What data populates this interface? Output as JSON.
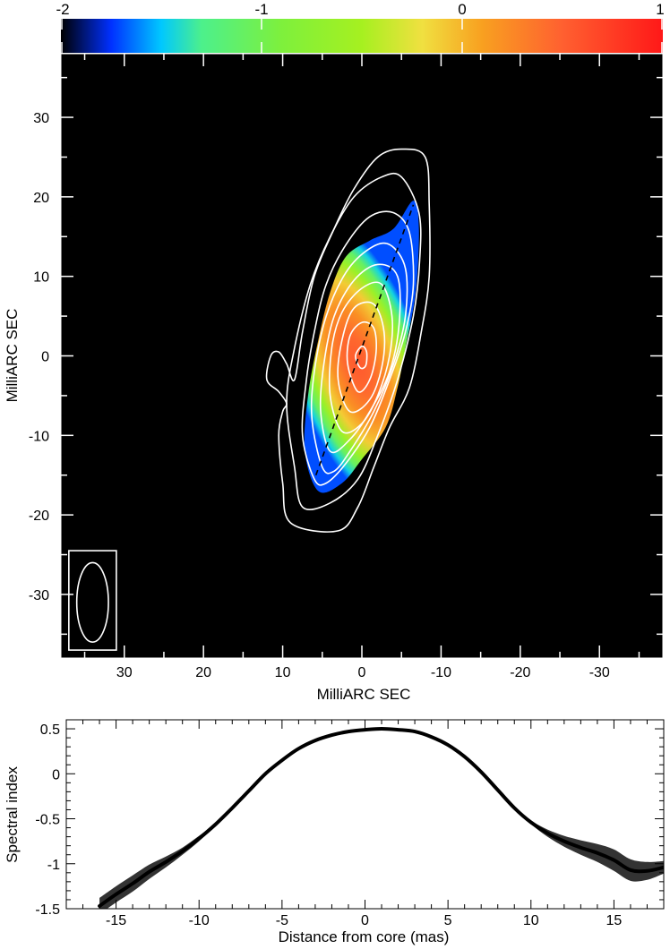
{
  "colorbar": {
    "ticks": [
      "-2",
      "-1",
      "0",
      "1"
    ],
    "tick_values": [
      -2,
      -1,
      0,
      1
    ],
    "range": [
      -2,
      1
    ],
    "stops": [
      {
        "v": -2.0,
        "c": "#000000"
      },
      {
        "v": -1.75,
        "c": "#0030ff"
      },
      {
        "v": -1.5,
        "c": "#00c8ff"
      },
      {
        "v": -1.3,
        "c": "#4cf08c"
      },
      {
        "v": -0.9,
        "c": "#7ef03c"
      },
      {
        "v": -0.5,
        "c": "#a6f020"
      },
      {
        "v": -0.2,
        "c": "#f0e040"
      },
      {
        "v": 0.1,
        "c": "#f8a020"
      },
      {
        "v": 0.5,
        "c": "#ff6030"
      },
      {
        "v": 1.0,
        "c": "#ff1818"
      }
    ]
  },
  "map": {
    "xlabel": "MilliARC SEC",
    "ylabel": "MilliARC SEC",
    "xticks": [
      "30",
      "20",
      "10",
      "0",
      "-10",
      "-20",
      "-30"
    ],
    "xtick_values": [
      30,
      20,
      10,
      0,
      -10,
      -20,
      -30
    ],
    "yticks": [
      "30",
      "20",
      "10",
      "0",
      "-10",
      "-20",
      "-30"
    ],
    "ytick_values": [
      30,
      20,
      10,
      0,
      -10,
      -20,
      -30
    ],
    "xlim": [
      38,
      -38
    ],
    "ylim": [
      -38,
      38
    ],
    "background": "#000000",
    "contour_color": "#ffffff",
    "ridge_line": {
      "from": [
        5.8,
        -15.0
      ],
      "to": [
        -6.5,
        19.0
      ],
      "style": "dashed"
    },
    "contours": [
      {
        "name": "outer",
        "points": [
          [
            3,
            -22
          ],
          [
            9,
            -21
          ],
          [
            10,
            -16
          ],
          [
            10.5,
            -10
          ],
          [
            10,
            -7
          ],
          [
            9.5,
            -6
          ],
          [
            10.5,
            -4.5
          ],
          [
            12,
            -3
          ],
          [
            11.5,
            0
          ],
          [
            10.5,
            0.5
          ],
          [
            9.5,
            -1
          ],
          [
            8.5,
            -3
          ],
          [
            7.5,
            3
          ],
          [
            6,
            10
          ],
          [
            3.5,
            16
          ],
          [
            1,
            21
          ],
          [
            -2,
            25
          ],
          [
            -5,
            26
          ],
          [
            -8,
            25
          ],
          [
            -8.5,
            19
          ],
          [
            -8.5,
            10
          ],
          [
            -7.5,
            3
          ],
          [
            -6,
            -4
          ],
          [
            -3.5,
            -9
          ],
          [
            -1.5,
            -14
          ],
          [
            0.5,
            -19
          ]
        ]
      },
      {
        "name": "c2",
        "points": [
          [
            7.5,
            -19
          ],
          [
            8.5,
            -14
          ],
          [
            9.5,
            -6
          ],
          [
            8.5,
            1
          ],
          [
            6.5,
            9
          ],
          [
            4,
            15
          ],
          [
            1,
            20
          ],
          [
            -2.5,
            22.5
          ],
          [
            -5,
            22.5
          ],
          [
            -7.2,
            18
          ],
          [
            -7.3,
            12
          ],
          [
            -6.5,
            5
          ],
          [
            -4.5,
            -3
          ],
          [
            -2,
            -10
          ],
          [
            0.5,
            -15.5
          ],
          [
            4,
            -18.5
          ]
        ]
      },
      {
        "name": "c3",
        "points": [
          [
            6,
            -15.5
          ],
          [
            7.5,
            -10
          ],
          [
            7,
            -3
          ],
          [
            6,
            3
          ],
          [
            4.5,
            9
          ],
          [
            2,
            14
          ],
          [
            -1,
            17.5
          ],
          [
            -4,
            18
          ],
          [
            -6,
            15.5
          ],
          [
            -6.5,
            9
          ],
          [
            -5.5,
            3
          ],
          [
            -3.5,
            -3
          ],
          [
            -1,
            -9
          ],
          [
            2,
            -13.5
          ],
          [
            4.5,
            -16
          ]
        ]
      },
      {
        "name": "c4",
        "points": [
          [
            5,
            -14
          ],
          [
            6.3,
            -8
          ],
          [
            6,
            -2
          ],
          [
            4.5,
            5
          ],
          [
            2,
            10.5
          ],
          [
            -1,
            13.5
          ],
          [
            -3.5,
            14
          ],
          [
            -5.5,
            11
          ],
          [
            -5.5,
            5
          ],
          [
            -4,
            -1
          ],
          [
            -1.5,
            -7
          ],
          [
            1.5,
            -12
          ],
          [
            3.5,
            -14.5
          ]
        ]
      },
      {
        "name": "c5",
        "points": [
          [
            4,
            -12
          ],
          [
            5.2,
            -7
          ],
          [
            4.8,
            -1
          ],
          [
            3.5,
            5
          ],
          [
            1,
            9.5
          ],
          [
            -2,
            11.5
          ],
          [
            -4.5,
            10
          ],
          [
            -4.7,
            4
          ],
          [
            -3.5,
            -2
          ],
          [
            -1,
            -7
          ],
          [
            1.5,
            -10.5
          ]
        ]
      },
      {
        "name": "c6",
        "points": [
          [
            2.5,
            -9.5
          ],
          [
            4,
            -5
          ],
          [
            3.8,
            1
          ],
          [
            2.5,
            5.5
          ],
          [
            0,
            8.5
          ],
          [
            -2.5,
            9
          ],
          [
            -3.8,
            5
          ],
          [
            -3.5,
            0
          ],
          [
            -2,
            -5
          ],
          [
            0,
            -8.5
          ]
        ]
      },
      {
        "name": "c7",
        "points": [
          [
            1.5,
            -7
          ],
          [
            3,
            -3
          ],
          [
            2.5,
            2
          ],
          [
            1,
            6
          ],
          [
            -1.5,
            6.5
          ],
          [
            -2.8,
            3
          ],
          [
            -2.5,
            -1.5
          ],
          [
            -1,
            -5.5
          ]
        ]
      },
      {
        "name": "c8",
        "points": [
          [
            0.5,
            -4.5
          ],
          [
            1.8,
            -1
          ],
          [
            1.5,
            2.5
          ],
          [
            0,
            4.2
          ],
          [
            -1.5,
            3.5
          ],
          [
            -1.8,
            0.5
          ],
          [
            -1,
            -3
          ]
        ]
      },
      {
        "name": "c9",
        "points": [
          [
            0.2,
            -1.5
          ],
          [
            0.8,
            0
          ],
          [
            0,
            1.2
          ],
          [
            -0.6,
            0.5
          ],
          [
            -0.5,
            -1.2
          ]
        ]
      }
    ],
    "spectral_region": {
      "outline": [
        [
          5.5,
          -17
        ],
        [
          7.2,
          -12
        ],
        [
          6.8,
          -5
        ],
        [
          5.5,
          2
        ],
        [
          4,
          8
        ],
        [
          2,
          12.5
        ],
        [
          -1,
          14.5
        ],
        [
          -4,
          16
        ],
        [
          -6.5,
          19.5
        ],
        [
          -7.2,
          16
        ],
        [
          -6.8,
          8
        ],
        [
          -5.5,
          1
        ],
        [
          -4.5,
          -4
        ],
        [
          -3,
          -9
        ],
        [
          0,
          -13
        ],
        [
          2.5,
          -16
        ]
      ],
      "note": "spectral index colour: ~0.5 at core, decreasing along the jet to about -1.5 at the edges"
    },
    "beam": {
      "box": {
        "x": [
          37,
          31
        ],
        "y": [
          -37,
          -24.5
        ]
      },
      "ellipse": {
        "cx": 34,
        "cy": -31,
        "rx": 2,
        "ry": 5
      }
    }
  },
  "chart_data": {
    "type": "line",
    "xlabel": "Distance from core (mas)",
    "ylabel": "Spectral index",
    "xlim": [
      -18,
      18
    ],
    "ylim": [
      -1.5,
      0.6
    ],
    "xticks": [
      "-15",
      "-10",
      "-5",
      "0",
      "5",
      "10",
      "15"
    ],
    "xtick_values": [
      -15,
      -10,
      -5,
      0,
      5,
      10,
      15
    ],
    "yticks": [
      "0.5",
      "0",
      "-0.5",
      "-1",
      "-1.5"
    ],
    "ytick_values": [
      0.5,
      0,
      -0.5,
      -1,
      -1.5
    ],
    "series": [
      {
        "x": [
          -16,
          -15,
          -14,
          -13,
          -12,
          -11,
          -10,
          -9,
          -8,
          -7,
          -6,
          -5,
          -4,
          -3,
          -2,
          -1,
          0,
          1,
          2,
          3,
          4,
          5,
          6,
          7,
          8,
          9,
          10,
          11,
          12,
          13,
          14,
          15,
          16,
          17,
          18
        ],
        "y": [
          -1.47,
          -1.34,
          -1.22,
          -1.09,
          -0.98,
          -0.86,
          -0.72,
          -0.56,
          -0.38,
          -0.19,
          0.0,
          0.15,
          0.28,
          0.37,
          0.43,
          0.47,
          0.49,
          0.5,
          0.49,
          0.47,
          0.41,
          0.32,
          0.19,
          0.02,
          -0.18,
          -0.38,
          -0.54,
          -0.66,
          -0.75,
          -0.82,
          -0.88,
          -0.96,
          -1.07,
          -1.08,
          -1.04
        ],
        "err": [
          0.09,
          0.09,
          0.09,
          0.08,
          0.06,
          0.04,
          0.03,
          0.01,
          0.01,
          0.01,
          0.01,
          0.01,
          0.01,
          0.01,
          0.01,
          0.01,
          0.01,
          0.01,
          0.01,
          0.01,
          0.01,
          0.01,
          0.01,
          0.01,
          0.01,
          0.01,
          0.02,
          0.04,
          0.06,
          0.08,
          0.1,
          0.12,
          0.12,
          0.1,
          0.07
        ]
      }
    ]
  }
}
